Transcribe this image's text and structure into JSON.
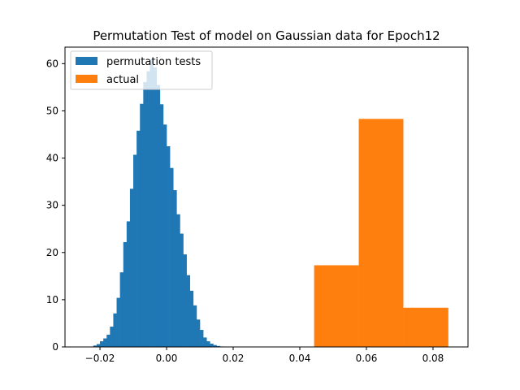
{
  "chart_data": {
    "type": "bar",
    "title": "Permutation Test of model on Gaussian data for Epoch12",
    "xlabel": "",
    "ylabel": "",
    "xlim": [
      -0.0305,
      0.0905
    ],
    "ylim": [
      0,
      63.5
    ],
    "xticks": [
      -0.02,
      0.0,
      0.02,
      0.04,
      0.06,
      0.08
    ],
    "xtick_labels": [
      "−0.02",
      "0.00",
      "0.02",
      "0.04",
      "0.06",
      "0.08"
    ],
    "yticks": [
      0,
      10,
      20,
      30,
      40,
      50,
      60
    ],
    "ytick_labels": [
      "0",
      "10",
      "20",
      "30",
      "40",
      "50",
      "60"
    ],
    "grid": false,
    "legend_position": "top-left",
    "series": [
      {
        "name": "permutation tests",
        "color": "#1f77b4",
        "bin_start": -0.022,
        "bin_width": 0.001,
        "values": [
          0.3,
          0.6,
          1.2,
          1.8,
          2.6,
          4.3,
          7.1,
          10.4,
          15.8,
          22.2,
          26.6,
          33.5,
          40.7,
          45.8,
          51.5,
          56.1,
          58.4,
          60.8,
          59.2,
          55.5,
          51.4,
          47.1,
          42.5,
          37.9,
          33.2,
          28.1,
          24.0,
          19.6,
          15.2,
          11.9,
          8.8,
          5.8,
          3.6,
          2.0,
          1.2,
          0.7,
          0.4,
          0.2,
          0.1,
          0.05,
          0.02,
          0.01,
          0.01,
          0.01,
          0.01
        ]
      },
      {
        "name": "actual",
        "color": "#ff7f0e",
        "bin_edges": [
          0.0443,
          0.0577,
          0.0711,
          0.0846
        ],
        "values": [
          17.3,
          48.3,
          8.3
        ]
      }
    ]
  }
}
